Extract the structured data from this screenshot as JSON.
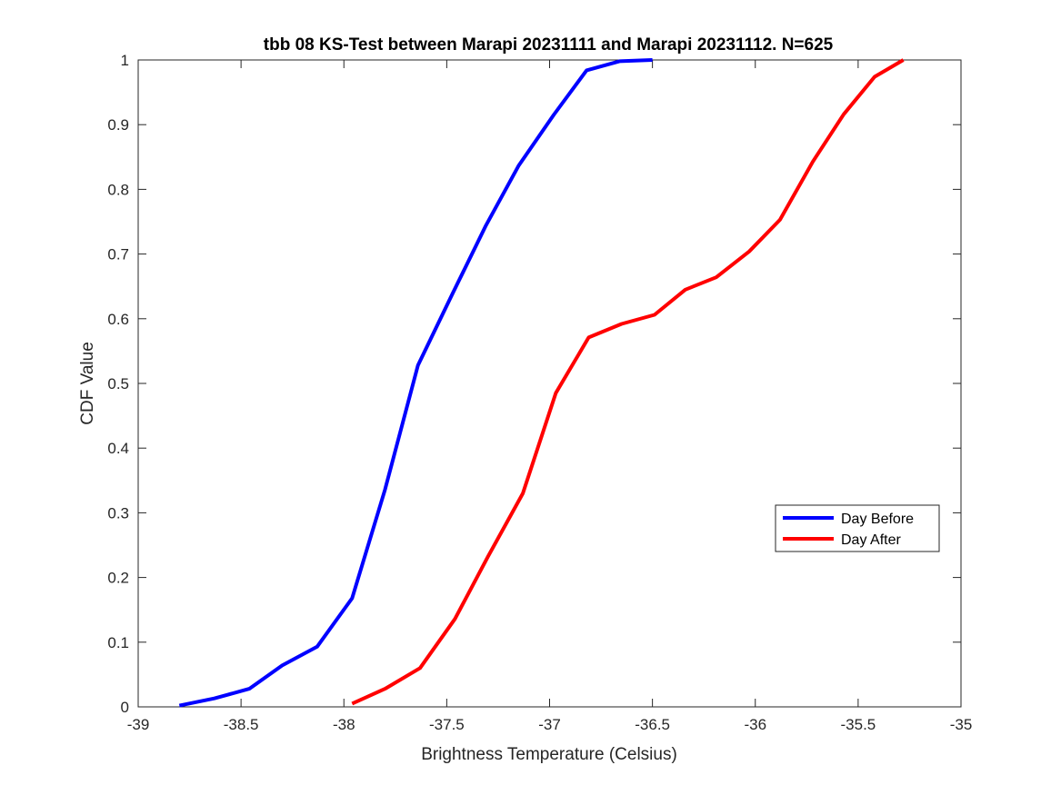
{
  "chart_data": {
    "type": "line",
    "title": "tbb 08 KS-Test between Marapi 20231111 and Marapi 20231112. N=625",
    "xlabel": "Brightness Temperature (Celsius)",
    "ylabel": "CDF Value",
    "xlim": [
      -39,
      -35
    ],
    "ylim": [
      0,
      1
    ],
    "xticks": [
      -39,
      -38.5,
      -38,
      -37.5,
      -37,
      -36.5,
      -36,
      -35.5,
      -35
    ],
    "xtick_labels": [
      "-39",
      "-38.5",
      "-38",
      "-37.5",
      "-37",
      "-36.5",
      "-36",
      "-35.5",
      "-35"
    ],
    "yticks": [
      0,
      0.1,
      0.2,
      0.3,
      0.4,
      0.5,
      0.6,
      0.7,
      0.8,
      0.9,
      1
    ],
    "ytick_labels": [
      "0",
      "0.1",
      "0.2",
      "0.3",
      "0.4",
      "0.5",
      "0.6",
      "0.7",
      "0.8",
      "0.9",
      "1"
    ],
    "grid": false,
    "legend_position": "right",
    "series": [
      {
        "name": "Day Before",
        "color": "#0000ff",
        "x": [
          -38.8,
          -38.63,
          -38.46,
          -38.3,
          -38.13,
          -37.96,
          -37.8,
          -37.64,
          -37.47,
          -37.31,
          -37.15,
          -36.98,
          -36.82,
          -36.66,
          -36.5
        ],
        "y": [
          0.002,
          0.013,
          0.028,
          0.064,
          0.093,
          0.168,
          0.336,
          0.528,
          0.64,
          0.744,
          0.837,
          0.915,
          0.984,
          0.998,
          1.0
        ]
      },
      {
        "name": "Day After",
        "color": "#ff0000",
        "x": [
          -37.96,
          -37.8,
          -37.63,
          -37.46,
          -37.3,
          -37.13,
          -36.97,
          -36.81,
          -36.65,
          -36.49,
          -36.34,
          -36.19,
          -36.03,
          -35.88,
          -35.72,
          -35.57,
          -35.42,
          -35.28
        ],
        "y": [
          0.005,
          0.028,
          0.06,
          0.136,
          0.232,
          0.33,
          0.485,
          0.571,
          0.592,
          0.606,
          0.645,
          0.664,
          0.704,
          0.753,
          0.843,
          0.916,
          0.974,
          1.0
        ]
      }
    ]
  }
}
